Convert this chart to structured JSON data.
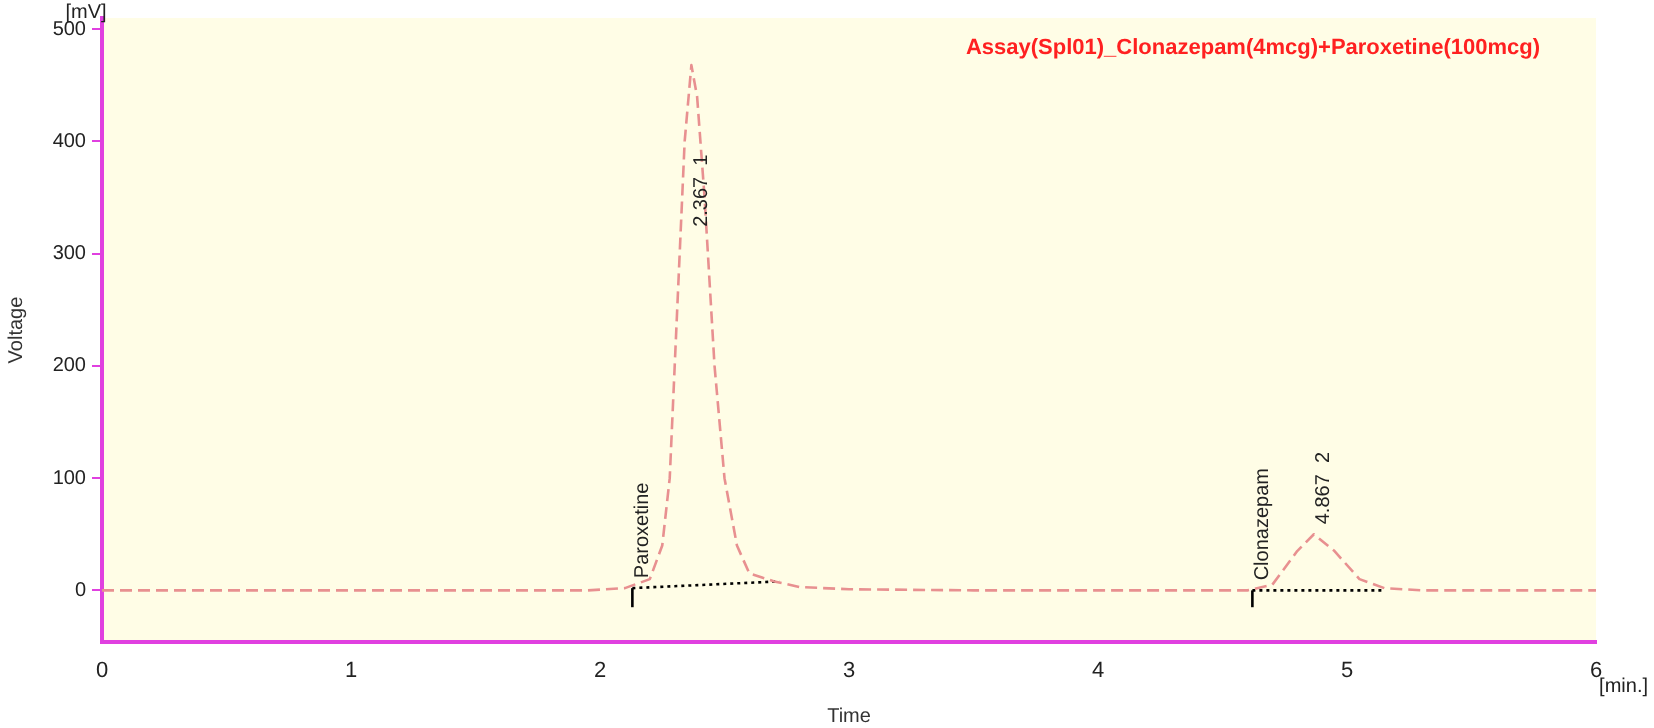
{
  "chart_data": {
    "type": "line",
    "title": "Assay(Spl01)_Clonazepam(4mcg)+Paroxetine(100mcg)",
    "xlabel": "Time",
    "ylabel": "Voltage",
    "xlim": [
      0,
      6
    ],
    "xticks": [
      0,
      1,
      2,
      3,
      4,
      5,
      6
    ],
    "ylim": [
      -46,
      510
    ],
    "yticks": [
      0,
      100,
      200,
      300,
      400,
      500
    ],
    "grid": false,
    "legend": false,
    "marker": "none",
    "series": [
      {
        "color": "#e89090",
        "line_style": "dashed",
        "x": [
          0,
          0.5,
          1,
          1.5,
          1.95,
          2.1,
          2.2,
          2.25,
          2.28,
          2.31,
          2.34,
          2.367,
          2.39,
          2.42,
          2.46,
          2.5,
          2.55,
          2.6,
          2.7,
          2.8,
          3.0,
          3.5,
          4.0,
          4.6,
          4.7,
          4.8,
          4.867,
          4.95,
          5.05,
          5.15,
          5.3,
          5.6,
          6
        ],
        "values": [
          0,
          0,
          0,
          0,
          0,
          2,
          10,
          40,
          100,
          250,
          400,
          468,
          440,
          350,
          200,
          100,
          40,
          15,
          8,
          3,
          1,
          0,
          0,
          0,
          5,
          35,
          50,
          35,
          10,
          2,
          0,
          0,
          0
        ]
      },
      {
        "color": "#000000",
        "line_style": "dotted",
        "x": [
          2.13,
          2.72
        ],
        "values": [
          2,
          8
        ]
      },
      {
        "color": "#000000",
        "line_style": "dotted",
        "x": [
          4.62,
          5.15
        ],
        "values": [
          0,
          0
        ]
      },
      {
        "color": "#000000",
        "line_style": "solid",
        "x": [
          2.13,
          2.13
        ],
        "values": [
          -15,
          2
        ]
      },
      {
        "color": "#000000",
        "line_style": "solid",
        "x": [
          4.62,
          4.62
        ],
        "values": [
          -15,
          0
        ]
      }
    ],
    "annotations": [
      "[mV]",
      "[min.]",
      {
        "text": "Paroxetine",
        "x": 2.13,
        "y": 2
      },
      {
        "text": "2.367  1",
        "x": 2.367,
        "y": 315
      },
      {
        "text": "Clonazepam",
        "x": 4.62,
        "y": 0
      },
      {
        "text": "4.867  2",
        "x": 4.867,
        "y": 50
      }
    ]
  }
}
